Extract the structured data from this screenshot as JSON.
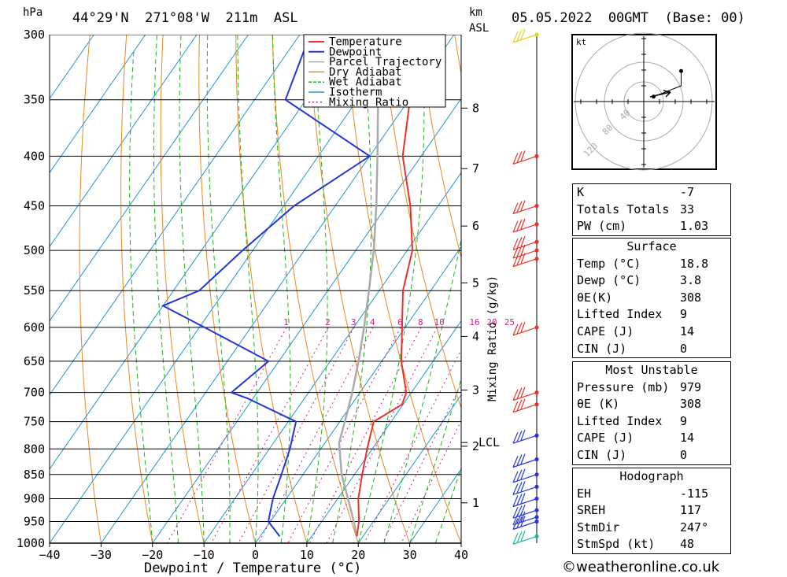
{
  "header": {
    "pressure_unit": "hPa",
    "location": "44°29'N  271°08'W  211m  ASL",
    "km_label": "km",
    "asl_label": "ASL",
    "datetime": "05.05.2022  00GMT  (Base: 00)"
  },
  "chart_data": {
    "type": "line",
    "title": "",
    "xlabel": "Dewpoint / Temperature (°C)",
    "ylabel": "hPa",
    "x_ticks": [
      -40,
      -30,
      -20,
      -10,
      0,
      10,
      20,
      30,
      40
    ],
    "pressure_levels": [
      300,
      350,
      400,
      450,
      500,
      550,
      600,
      650,
      700,
      750,
      800,
      850,
      900,
      950,
      1000
    ],
    "skew_per_log_pressure": 57,
    "km_ticks": [
      {
        "km": 1,
        "pressure": 909
      },
      {
        "km": 2,
        "pressure": 795
      },
      {
        "km": 3,
        "pressure": 696
      },
      {
        "km": 4,
        "pressure": 613
      },
      {
        "km": 5,
        "pressure": 540
      },
      {
        "km": 6,
        "pressure": 472
      },
      {
        "km": 7,
        "pressure": 412
      },
      {
        "km": 8,
        "pressure": 357
      }
    ],
    "lcl": {
      "label": "LCL",
      "pressure": 788
    },
    "mixing_ratio": {
      "label": "Mixing Ratio (g/kg)",
      "values": [
        1,
        2,
        3,
        4,
        6,
        8,
        10,
        16,
        20,
        25
      ],
      "label_pressure": 600
    },
    "legend": {
      "position": "top-center",
      "entries": [
        {
          "name": "Temperature",
          "color": "#e8312a"
        },
        {
          "name": "Dewpoint",
          "color": "#2337d6"
        },
        {
          "name": "Parcel Trajectory",
          "color": "#aaaaaa"
        },
        {
          "name": "Dry Adiabat",
          "color": "#e8881e"
        },
        {
          "name": "Wet Adiabat",
          "color": "#19b419"
        },
        {
          "name": "Isotherm",
          "color": "#1e96dc"
        },
        {
          "name": "Mixing Ratio",
          "color": "#d01e8c"
        }
      ]
    },
    "series": [
      {
        "name": "Temperature",
        "color": "#e8312a",
        "points": [
          [
            984,
            18.8
          ],
          [
            950,
            17.2
          ],
          [
            900,
            14.0
          ],
          [
            850,
            11.5
          ],
          [
            800,
            9.0
          ],
          [
            750,
            6.6
          ],
          [
            720,
            9.8
          ],
          [
            700,
            9.0
          ],
          [
            650,
            3.8
          ],
          [
            600,
            -0.6
          ],
          [
            550,
            -5.4
          ],
          [
            500,
            -9.0
          ],
          [
            450,
            -15.4
          ],
          [
            400,
            -23.6
          ],
          [
            350,
            -29.8
          ],
          [
            300,
            -37.4
          ]
        ]
      },
      {
        "name": "Dewpoint",
        "color": "#2337d6",
        "points": [
          [
            984,
            3.8
          ],
          [
            950,
            -0.4
          ],
          [
            900,
            -2.6
          ],
          [
            850,
            -4.2
          ],
          [
            800,
            -6.0
          ],
          [
            750,
            -8.5
          ],
          [
            710,
            -21.0
          ],
          [
            700,
            -25.0
          ],
          [
            650,
            -22.0
          ],
          [
            600,
            -39.0
          ],
          [
            570,
            -50.0
          ],
          [
            550,
            -45.0
          ],
          [
            500,
            -42.0
          ],
          [
            450,
            -38.0
          ],
          [
            400,
            -30.0
          ],
          [
            350,
            -54.0
          ],
          [
            300,
            -58.0
          ]
        ]
      },
      {
        "name": "Parcel Trajectory",
        "color": "#aaaaaa",
        "points": [
          [
            984,
            18.8
          ],
          [
            950,
            16.2
          ],
          [
            900,
            12.0
          ],
          [
            850,
            7.5
          ],
          [
            788,
            2.7
          ],
          [
            750,
            1.0
          ],
          [
            700,
            -1.5
          ],
          [
            650,
            -4.5
          ],
          [
            600,
            -8.0
          ],
          [
            550,
            -12.0
          ],
          [
            500,
            -16.5
          ],
          [
            450,
            -22.0
          ],
          [
            400,
            -28.5
          ],
          [
            350,
            -36.0
          ],
          [
            300,
            -45.0
          ]
        ]
      }
    ],
    "wind_barbs": [
      {
        "pressure": 300,
        "color": "#e6d21e"
      },
      {
        "pressure": 400,
        "color": "#e8312a"
      },
      {
        "pressure": 450,
        "color": "#e8312a"
      },
      {
        "pressure": 470,
        "color": "#e8312a"
      },
      {
        "pressure": 490,
        "color": "#e8312a"
      },
      {
        "pressure": 500,
        "color": "#e8312a"
      },
      {
        "pressure": 510,
        "color": "#e8312a"
      },
      {
        "pressure": 600,
        "color": "#e8312a"
      },
      {
        "pressure": 700,
        "color": "#e8312a"
      },
      {
        "pressure": 720,
        "color": "#e8312a"
      },
      {
        "pressure": 775,
        "color": "#2337d6"
      },
      {
        "pressure": 820,
        "color": "#2337d6"
      },
      {
        "pressure": 850,
        "color": "#2337d6"
      },
      {
        "pressure": 875,
        "color": "#2337d6"
      },
      {
        "pressure": 900,
        "color": "#2337d6"
      },
      {
        "pressure": 925,
        "color": "#2337d6"
      },
      {
        "pressure": 940,
        "color": "#2337d6"
      },
      {
        "pressure": 950,
        "color": "#2337d6"
      },
      {
        "pressure": 984,
        "color": "#19b4a0"
      }
    ],
    "hodograph": {
      "unit": "kt",
      "ring_labels": [
        "40",
        "80",
        "120"
      ],
      "points": [
        [
          10,
          10
        ],
        [
          38,
          32
        ],
        [
          38,
          62
        ]
      ]
    }
  },
  "stats": {
    "general": [
      {
        "label": "K",
        "value": "-7"
      },
      {
        "label": "Totals Totals",
        "value": "33"
      },
      {
        "label": "PW (cm)",
        "value": "1.03"
      }
    ],
    "surface": {
      "title": "Surface",
      "rows": [
        {
          "label": "Temp (°C)",
          "value": "18.8"
        },
        {
          "label": "Dewp (°C)",
          "value": "3.8"
        },
        {
          "label": "θE(K)",
          "value": "308"
        },
        {
          "label": "Lifted Index",
          "value": "9"
        },
        {
          "label": "CAPE (J)",
          "value": "14"
        },
        {
          "label": "CIN (J)",
          "value": "0"
        }
      ]
    },
    "most_unstable": {
      "title": "Most Unstable",
      "rows": [
        {
          "label": "Pressure (mb)",
          "value": "979"
        },
        {
          "label": "θE (K)",
          "value": "308"
        },
        {
          "label": "Lifted Index",
          "value": "9"
        },
        {
          "label": "CAPE (J)",
          "value": "14"
        },
        {
          "label": "CIN (J)",
          "value": "0"
        }
      ]
    },
    "hodograph": {
      "title": "Hodograph",
      "rows": [
        {
          "label": "EH",
          "value": "-115"
        },
        {
          "label": "SREH",
          "value": "117"
        },
        {
          "label": "StmDir",
          "value": "247°"
        },
        {
          "label": "StmSpd (kt)",
          "value": "48"
        }
      ]
    }
  },
  "footer": {
    "copyright": "©weatheronline.co.uk"
  }
}
